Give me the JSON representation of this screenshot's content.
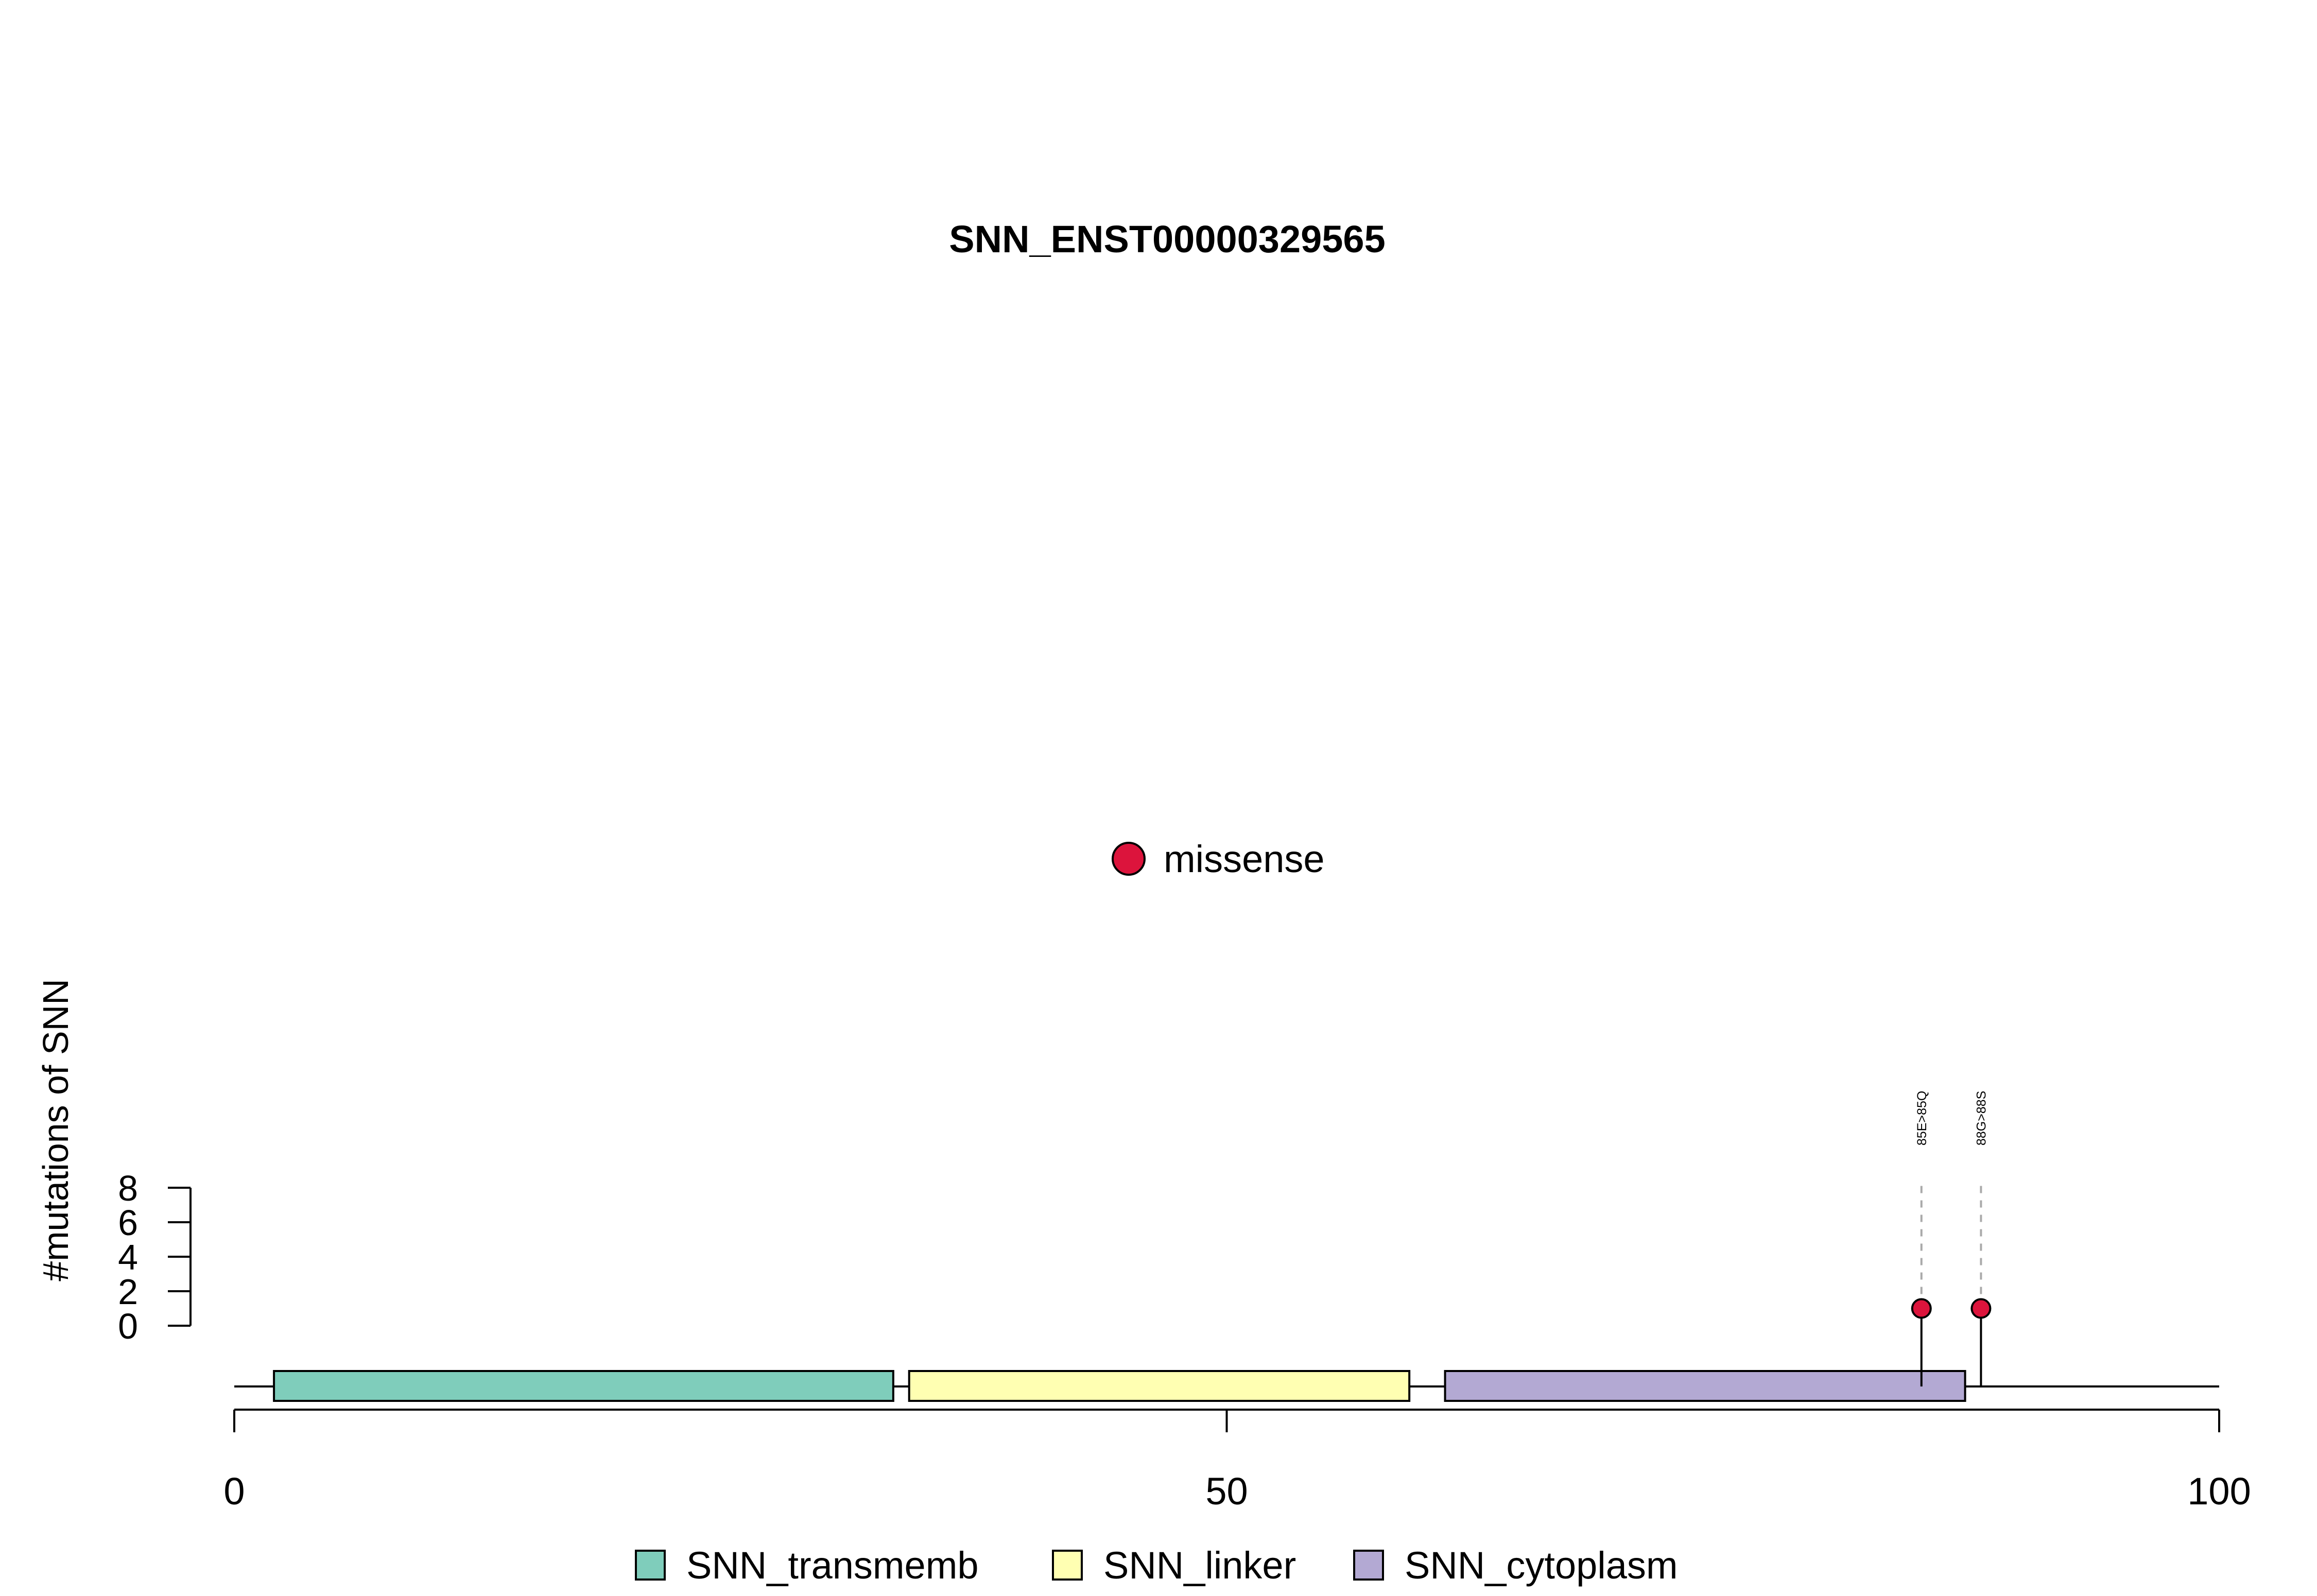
{
  "chart_data": {
    "type": "lollipop",
    "title": "SNN_ENST00000329565",
    "ylabel": "#mutations of SNN",
    "xlabel": "",
    "xlim": [
      0,
      100
    ],
    "x_ticks": [
      0,
      50,
      100
    ],
    "ylim": [
      0,
      8
    ],
    "y_ticks": [
      0,
      2,
      4,
      6,
      8
    ],
    "grid": false,
    "mutation_legend": {
      "placement": "top-center",
      "items": [
        {
          "label": "missense",
          "color": "#DC143C"
        }
      ]
    },
    "mutations": [
      {
        "position": 85,
        "count": 1,
        "label": "85E>85Q",
        "type": "missense",
        "color": "#DC143C"
      },
      {
        "position": 88,
        "count": 1,
        "label": "88G>88S",
        "type": "missense",
        "color": "#DC143C"
      }
    ],
    "domains": [
      {
        "name": "SNN_transmemb",
        "start": 2,
        "end": 33.2,
        "color": "#7FCDBB"
      },
      {
        "name": "SNN_linker",
        "start": 34,
        "end": 59.2,
        "color": "#FFFFB2"
      },
      {
        "name": "SNN_cytoplasm",
        "start": 61,
        "end": 87.2,
        "color": "#B3A9D3"
      }
    ],
    "domain_legend": {
      "placement": "bottom-center",
      "items": [
        {
          "label": "SNN_transmemb",
          "color": "#7FCDBB"
        },
        {
          "label": "SNN_linker",
          "color": "#FFFFB2"
        },
        {
          "label": "SNN_cytoplasm",
          "color": "#B3A9D3"
        }
      ]
    }
  }
}
